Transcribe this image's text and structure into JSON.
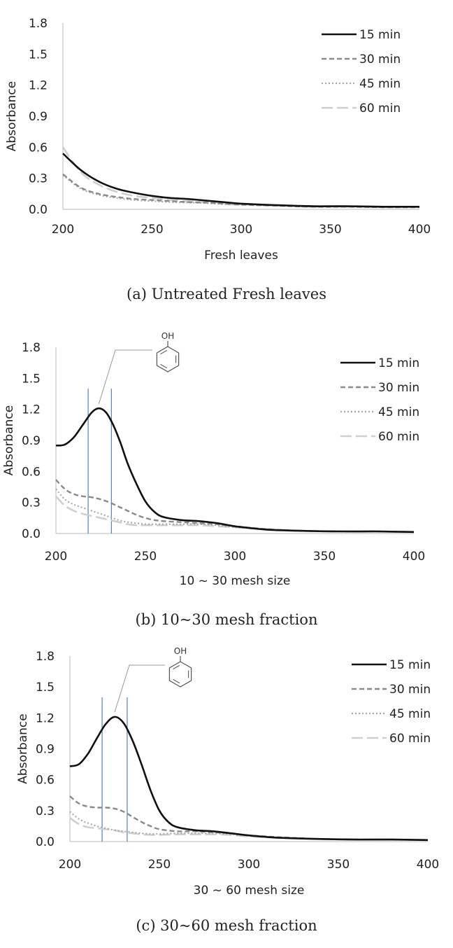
{
  "chart_data": [
    {
      "type": "line",
      "xlabel": "Fresh leaves",
      "ylabel": "Absorbance",
      "xlim": [
        200,
        400
      ],
      "ylim": [
        0,
        1.8
      ],
      "x_ticks": [
        "200",
        "250",
        "300",
        "350",
        "400"
      ],
      "y_ticks": [
        "0.0",
        "0.3",
        "0.6",
        "0.9",
        "1.2",
        "1.5",
        "1.8"
      ],
      "legend_position": "top-right",
      "grid": false,
      "caption": "(a) Untreated Fresh leaves",
      "series": [
        {
          "name": "15 min",
          "x": [
            200,
            210,
            220,
            230,
            240,
            250,
            260,
            270,
            280,
            290,
            300,
            320,
            340,
            360,
            380,
            400
          ],
          "y": [
            0.54,
            0.38,
            0.27,
            0.2,
            0.16,
            0.13,
            0.11,
            0.1,
            0.085,
            0.07,
            0.055,
            0.04,
            0.03,
            0.03,
            0.025,
            0.025
          ]
        },
        {
          "name": "30 min",
          "x": [
            200,
            210,
            220,
            230,
            240,
            250,
            260,
            270,
            280,
            290,
            300,
            320,
            340,
            360,
            380,
            400
          ],
          "y": [
            0.34,
            0.21,
            0.15,
            0.12,
            0.1,
            0.09,
            0.08,
            0.07,
            0.065,
            0.055,
            0.045,
            0.035,
            0.025,
            0.025,
            0.02,
            0.02
          ]
        },
        {
          "name": "45 min",
          "x": [
            200,
            210,
            220,
            230,
            240,
            250,
            260,
            270,
            280,
            290,
            300,
            320,
            340,
            360,
            380,
            400
          ],
          "y": [
            0.33,
            0.2,
            0.14,
            0.11,
            0.09,
            0.08,
            0.07,
            0.065,
            0.06,
            0.05,
            0.045,
            0.035,
            0.025,
            0.025,
            0.02,
            0.02
          ]
        },
        {
          "name": "60 min",
          "x": [
            200,
            210,
            220,
            230,
            240,
            250,
            260,
            270,
            280,
            290,
            300,
            320,
            340,
            360,
            380,
            400
          ],
          "y": [
            0.6,
            0.36,
            0.24,
            0.17,
            0.13,
            0.11,
            0.09,
            0.08,
            0.07,
            0.06,
            0.05,
            0.04,
            0.03,
            0.03,
            0.025,
            0.025
          ]
        }
      ]
    },
    {
      "type": "line",
      "xlabel": "10 ~ 30 mesh size",
      "ylabel": "Absorbance",
      "xlim": [
        200,
        400
      ],
      "ylim": [
        0,
        1.8
      ],
      "x_ticks": [
        "200",
        "250",
        "300",
        "350",
        "400"
      ],
      "y_ticks": [
        "0.0",
        "0.3",
        "0.6",
        "0.9",
        "1.2",
        "1.5",
        "1.8"
      ],
      "legend_position": "top-right",
      "grid": false,
      "caption": "(b) 10~30 mesh fraction",
      "annotation": {
        "label": "OH",
        "peak_x": 224,
        "lines_x": [
          218,
          231
        ]
      },
      "series": [
        {
          "name": "15 min",
          "x": [
            200,
            205,
            210,
            215,
            220,
            224,
            228,
            232,
            236,
            240,
            245,
            250,
            255,
            260,
            270,
            280,
            290,
            300,
            310,
            320,
            340,
            360,
            380,
            400
          ],
          "y": [
            0.85,
            0.86,
            0.93,
            1.05,
            1.17,
            1.21,
            1.17,
            1.05,
            0.88,
            0.68,
            0.48,
            0.31,
            0.21,
            0.16,
            0.13,
            0.12,
            0.1,
            0.07,
            0.05,
            0.035,
            0.025,
            0.02,
            0.02,
            0.015
          ]
        },
        {
          "name": "30 min",
          "x": [
            200,
            205,
            210,
            215,
            220,
            225,
            230,
            235,
            240,
            245,
            250,
            255,
            260,
            270,
            280,
            290,
            300,
            320,
            340,
            360,
            380,
            400
          ],
          "y": [
            0.52,
            0.43,
            0.38,
            0.36,
            0.35,
            0.33,
            0.3,
            0.26,
            0.22,
            0.18,
            0.15,
            0.13,
            0.12,
            0.11,
            0.1,
            0.09,
            0.07,
            0.04,
            0.025,
            0.02,
            0.02,
            0.015
          ]
        },
        {
          "name": "45 min",
          "x": [
            200,
            205,
            210,
            215,
            220,
            225,
            230,
            235,
            240,
            245,
            250,
            260,
            270,
            280,
            290,
            300,
            320,
            340,
            360,
            380,
            400
          ],
          "y": [
            0.43,
            0.33,
            0.28,
            0.25,
            0.22,
            0.19,
            0.16,
            0.13,
            0.11,
            0.1,
            0.09,
            0.09,
            0.09,
            0.09,
            0.08,
            0.06,
            0.04,
            0.025,
            0.02,
            0.02,
            0.015
          ]
        },
        {
          "name": "60 min",
          "x": [
            200,
            205,
            210,
            215,
            220,
            225,
            230,
            235,
            240,
            245,
            250,
            260,
            270,
            280,
            290,
            300,
            320,
            340,
            360,
            380,
            400
          ],
          "y": [
            0.36,
            0.27,
            0.22,
            0.19,
            0.17,
            0.15,
            0.13,
            0.11,
            0.09,
            0.08,
            0.08,
            0.08,
            0.08,
            0.08,
            0.07,
            0.06,
            0.04,
            0.025,
            0.02,
            0.02,
            0.015
          ]
        }
      ]
    },
    {
      "type": "line",
      "xlabel": "30 ~ 60 mesh size",
      "ylabel": "Absorbance",
      "xlim": [
        200,
        400
      ],
      "ylim": [
        0,
        1.8
      ],
      "x_ticks": [
        "200",
        "250",
        "300",
        "350",
        "400"
      ],
      "y_ticks": [
        "0.0",
        "0.3",
        "0.6",
        "0.9",
        "1.2",
        "1.5",
        "1.8"
      ],
      "legend_position": "top-right",
      "grid": false,
      "caption": "(c) 30~60 mesh fraction",
      "annotation": {
        "label": "OH",
        "peak_x": 225,
        "lines_x": [
          218,
          232
        ]
      },
      "series": [
        {
          "name": "15 min",
          "x": [
            200,
            205,
            210,
            215,
            220,
            225,
            230,
            235,
            240,
            245,
            250,
            255,
            260,
            270,
            280,
            290,
            300,
            310,
            320,
            340,
            360,
            380,
            400
          ],
          "y": [
            0.73,
            0.75,
            0.85,
            1.0,
            1.14,
            1.21,
            1.15,
            0.98,
            0.75,
            0.5,
            0.3,
            0.19,
            0.14,
            0.11,
            0.1,
            0.08,
            0.06,
            0.045,
            0.035,
            0.025,
            0.02,
            0.02,
            0.015
          ]
        },
        {
          "name": "30 min",
          "x": [
            200,
            205,
            210,
            215,
            220,
            225,
            230,
            235,
            240,
            245,
            250,
            260,
            270,
            280,
            290,
            300,
            320,
            340,
            360,
            380,
            400
          ],
          "y": [
            0.44,
            0.37,
            0.34,
            0.33,
            0.33,
            0.32,
            0.29,
            0.24,
            0.19,
            0.15,
            0.12,
            0.1,
            0.1,
            0.09,
            0.08,
            0.06,
            0.04,
            0.025,
            0.02,
            0.02,
            0.015
          ]
        },
        {
          "name": "45 min",
          "x": [
            200,
            205,
            210,
            215,
            220,
            225,
            230,
            235,
            240,
            245,
            250,
            260,
            270,
            280,
            290,
            300,
            320,
            340,
            360,
            380,
            400
          ],
          "y": [
            0.29,
            0.22,
            0.18,
            0.15,
            0.13,
            0.11,
            0.1,
            0.09,
            0.08,
            0.075,
            0.075,
            0.08,
            0.08,
            0.08,
            0.07,
            0.055,
            0.035,
            0.025,
            0.02,
            0.02,
            0.015
          ]
        },
        {
          "name": "60 min",
          "x": [
            200,
            205,
            210,
            215,
            220,
            225,
            230,
            235,
            240,
            245,
            250,
            260,
            270,
            280,
            290,
            300,
            320,
            340,
            360,
            380,
            400
          ],
          "y": [
            0.23,
            0.17,
            0.14,
            0.13,
            0.12,
            0.11,
            0.09,
            0.08,
            0.07,
            0.065,
            0.065,
            0.07,
            0.07,
            0.07,
            0.065,
            0.05,
            0.035,
            0.025,
            0.02,
            0.02,
            0.015
          ]
        }
      ]
    }
  ],
  "series_styles": [
    {
      "color": "#111111",
      "width": 2.6,
      "dash": ""
    },
    {
      "color": "#8a8a8a",
      "width": 2.4,
      "dash": "7 4"
    },
    {
      "color": "#a9a9a9",
      "width": 2.2,
      "dash": "2 3"
    },
    {
      "color": "#cfcfcf",
      "width": 2.6,
      "dash": "16 6"
    }
  ],
  "colors": {
    "axis": "#b8b8b8",
    "marker_line": "#4a86c5",
    "callout": "#999999",
    "text": "#222222"
  }
}
